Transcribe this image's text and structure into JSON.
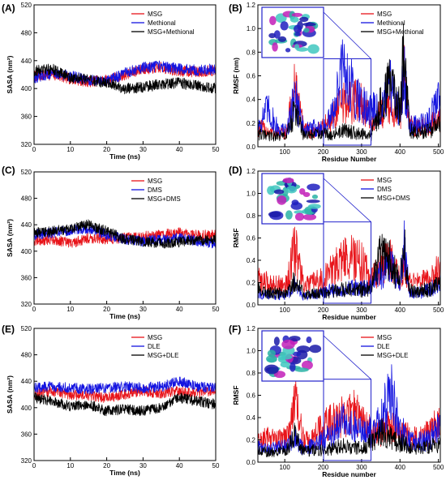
{
  "colors": {
    "msg": "#e8141a",
    "other": "#1414e0",
    "combo": "#000000",
    "inset_box": "#2222cc"
  },
  "panels": [
    {
      "label": "(A)",
      "kind": "sasa",
      "legend": [
        "MSG",
        "Methional",
        "MSG+Methional"
      ]
    },
    {
      "label": "(B)",
      "kind": "rmsf",
      "legend": [
        "MSG",
        "Methional",
        "MSG+Methional"
      ]
    },
    {
      "label": "(C)",
      "kind": "sasa",
      "legend": [
        "MSG",
        "DMS",
        "MSG+DMS"
      ]
    },
    {
      "label": "(D)",
      "kind": "rmsf",
      "legend": [
        "MSG",
        "DMS",
        "MSG+DMS"
      ]
    },
    {
      "label": "(E)",
      "kind": "sasa",
      "legend": [
        "MSG",
        "DLE",
        "MSG+DLE"
      ]
    },
    {
      "label": "(F)",
      "kind": "rmsf",
      "legend": [
        "MSG",
        "DLE",
        "MSG+DLE"
      ]
    }
  ],
  "chart_data": [
    {
      "panel": "(A)",
      "type": "line",
      "xlabel": "Time (ns)",
      "ylabel": "SASA (nm²)",
      "xlim": [
        0,
        50
      ],
      "ylim": [
        320,
        520
      ],
      "xticks": [
        "0",
        "10",
        "20",
        "30",
        "40",
        "50"
      ],
      "yticks": [
        "320",
        "360",
        "400",
        "440",
        "480",
        "520"
      ],
      "series": [
        {
          "name": "MSG",
          "x": [
            0,
            5,
            10,
            15,
            20,
            25,
            30,
            35,
            40,
            45,
            50
          ],
          "values": [
            418,
            420,
            414,
            410,
            412,
            420,
            428,
            430,
            425,
            424,
            426
          ]
        },
        {
          "name": "Methional",
          "x": [
            0,
            5,
            10,
            15,
            20,
            25,
            30,
            35,
            40,
            45,
            50
          ],
          "values": [
            415,
            422,
            418,
            412,
            410,
            422,
            430,
            432,
            428,
            426,
            428
          ]
        },
        {
          "name": "MSG+Methional",
          "x": [
            0,
            5,
            10,
            15,
            20,
            25,
            30,
            35,
            40,
            45,
            50
          ],
          "values": [
            425,
            428,
            416,
            412,
            408,
            400,
            402,
            406,
            408,
            404,
            400
          ]
        }
      ]
    },
    {
      "panel": "(B)",
      "type": "line",
      "xlabel": "Residue Number",
      "ylabel": "RMSF (nm)",
      "xlim": [
        30,
        505
      ],
      "ylim": [
        0,
        1.2
      ],
      "xticks": [
        "100",
        "200",
        "300",
        "400",
        "500"
      ],
      "yticks": [
        "0.0",
        "0.2",
        "0.4",
        "0.6",
        "0.8",
        "1.0",
        "1.2"
      ],
      "series": [
        {
          "name": "MSG",
          "x": [
            30,
            55,
            80,
            105,
            127,
            150,
            175,
            200,
            225,
            250,
            275,
            300,
            325,
            350,
            375,
            400,
            410,
            425,
            450,
            475,
            500
          ],
          "values": [
            0.18,
            0.15,
            0.12,
            0.14,
            0.58,
            0.15,
            0.14,
            0.18,
            0.28,
            0.4,
            0.42,
            0.45,
            0.22,
            0.3,
            0.4,
            0.25,
            0.72,
            0.2,
            0.18,
            0.2,
            0.25
          ]
        },
        {
          "name": "Methional",
          "x": [
            30,
            55,
            80,
            105,
            127,
            150,
            175,
            200,
            225,
            250,
            275,
            300,
            325,
            350,
            375,
            400,
            410,
            425,
            450,
            475,
            500
          ],
          "values": [
            0.2,
            0.35,
            0.18,
            0.14,
            0.5,
            0.14,
            0.18,
            0.16,
            0.3,
            0.72,
            0.55,
            0.42,
            0.35,
            0.32,
            0.55,
            0.3,
            0.7,
            0.22,
            0.2,
            0.24,
            0.45
          ]
        },
        {
          "name": "MSG+Methional",
          "x": [
            30,
            55,
            80,
            105,
            127,
            150,
            175,
            200,
            225,
            250,
            275,
            300,
            325,
            350,
            375,
            400,
            410,
            425,
            450,
            475,
            500
          ],
          "values": [
            0.12,
            0.1,
            0.1,
            0.1,
            0.35,
            0.1,
            0.12,
            0.12,
            0.12,
            0.15,
            0.14,
            0.12,
            0.1,
            0.4,
            0.62,
            0.35,
            0.88,
            0.15,
            0.14,
            0.15,
            0.2
          ]
        }
      ]
    },
    {
      "panel": "(C)",
      "type": "line",
      "xlabel": "Time (ns)",
      "ylabel": "SASA (nm²)",
      "xlim": [
        0,
        50
      ],
      "ylim": [
        320,
        520
      ],
      "xticks": [
        "0",
        "10",
        "20",
        "30",
        "40",
        "50"
      ],
      "yticks": [
        "320",
        "360",
        "400",
        "440",
        "480",
        "520"
      ],
      "series": [
        {
          "name": "MSG",
          "x": [
            0,
            5,
            10,
            15,
            20,
            25,
            30,
            35,
            40,
            45,
            50
          ],
          "values": [
            415,
            418,
            412,
            420,
            418,
            420,
            422,
            425,
            428,
            424,
            425
          ]
        },
        {
          "name": "DMS",
          "x": [
            0,
            5,
            10,
            15,
            20,
            25,
            30,
            35,
            40,
            45,
            50
          ],
          "values": [
            425,
            428,
            432,
            435,
            425,
            418,
            415,
            418,
            420,
            415,
            412
          ]
        },
        {
          "name": "MSG+DMS",
          "x": [
            0,
            5,
            10,
            15,
            20,
            25,
            30,
            35,
            40,
            45,
            50
          ],
          "values": [
            428,
            430,
            434,
            440,
            430,
            418,
            415,
            412,
            414,
            416,
            418
          ]
        }
      ]
    },
    {
      "panel": "(D)",
      "type": "line",
      "xlabel": "Residue number",
      "ylabel": "RMSF",
      "xlim": [
        30,
        505
      ],
      "ylim": [
        0,
        1.2
      ],
      "xticks": [
        "100",
        "200",
        "300",
        "400",
        "500"
      ],
      "yticks": [
        "0.0",
        "0.2",
        "0.4",
        "0.6",
        "0.8",
        "1.0",
        "1.2"
      ],
      "series": [
        {
          "name": "MSG",
          "x": [
            30,
            55,
            80,
            105,
            127,
            150,
            175,
            200,
            225,
            250,
            275,
            300,
            325,
            350,
            375,
            400,
            410,
            425,
            450,
            475,
            500
          ],
          "values": [
            0.25,
            0.22,
            0.2,
            0.2,
            0.58,
            0.18,
            0.22,
            0.25,
            0.35,
            0.45,
            0.48,
            0.42,
            0.25,
            0.4,
            0.45,
            0.28,
            0.4,
            0.22,
            0.22,
            0.25,
            0.38
          ]
        },
        {
          "name": "DMS",
          "x": [
            30,
            55,
            80,
            105,
            127,
            150,
            175,
            200,
            225,
            250,
            275,
            300,
            325,
            350,
            375,
            400,
            410,
            425,
            450,
            475,
            500
          ],
          "values": [
            0.12,
            0.1,
            0.1,
            0.1,
            0.2,
            0.08,
            0.1,
            0.12,
            0.15,
            0.15,
            0.18,
            0.16,
            0.18,
            0.3,
            0.4,
            0.2,
            0.6,
            0.12,
            0.12,
            0.15,
            0.2
          ]
        },
        {
          "name": "MSG+DMS",
          "x": [
            30,
            55,
            80,
            105,
            127,
            150,
            175,
            200,
            225,
            250,
            275,
            300,
            325,
            350,
            375,
            400,
            410,
            425,
            450,
            475,
            500
          ],
          "values": [
            0.15,
            0.12,
            0.12,
            0.1,
            0.25,
            0.1,
            0.12,
            0.12,
            0.14,
            0.15,
            0.16,
            0.15,
            0.18,
            0.5,
            0.42,
            0.22,
            0.62,
            0.14,
            0.14,
            0.15,
            0.2
          ]
        }
      ]
    },
    {
      "panel": "(E)",
      "type": "line",
      "xlabel": "Time (ns)",
      "ylabel": "SASA (nm²)",
      "xlim": [
        0,
        50
      ],
      "ylim": [
        320,
        520
      ],
      "xticks": [
        "0",
        "10",
        "20",
        "30",
        "40",
        "50"
      ],
      "yticks": [
        "320",
        "360",
        "400",
        "440",
        "480",
        "520"
      ],
      "series": [
        {
          "name": "MSG",
          "x": [
            0,
            5,
            10,
            15,
            20,
            25,
            30,
            35,
            40,
            45,
            50
          ],
          "values": [
            420,
            425,
            420,
            418,
            415,
            420,
            425,
            422,
            425,
            422,
            425
          ]
        },
        {
          "name": "DLE",
          "x": [
            0,
            5,
            10,
            15,
            20,
            25,
            30,
            35,
            40,
            45,
            50
          ],
          "values": [
            430,
            432,
            430,
            428,
            430,
            432,
            430,
            432,
            440,
            432,
            430
          ]
        },
        {
          "name": "MSG+DLE",
          "x": [
            0,
            5,
            10,
            15,
            20,
            25,
            30,
            35,
            40,
            45,
            50
          ],
          "values": [
            415,
            410,
            402,
            405,
            395,
            398,
            395,
            400,
            415,
            410,
            405
          ]
        }
      ]
    },
    {
      "panel": "(F)",
      "type": "line",
      "xlabel": "Residue number",
      "ylabel": "RMSF",
      "xlim": [
        30,
        505
      ],
      "ylim": [
        0,
        1.2
      ],
      "xticks": [
        "100",
        "200",
        "300",
        "400",
        "500"
      ],
      "yticks": [
        "0.0",
        "0.2",
        "0.4",
        "0.6",
        "0.8",
        "1.0",
        "1.2"
      ],
      "series": [
        {
          "name": "MSG",
          "x": [
            30,
            55,
            80,
            105,
            127,
            150,
            175,
            200,
            225,
            250,
            275,
            300,
            325,
            350,
            375,
            400,
            410,
            425,
            450,
            475,
            500
          ],
          "values": [
            0.2,
            0.25,
            0.22,
            0.25,
            0.6,
            0.2,
            0.25,
            0.35,
            0.4,
            0.45,
            0.48,
            0.5,
            0.3,
            0.3,
            0.35,
            0.3,
            0.32,
            0.25,
            0.25,
            0.28,
            0.4
          ]
        },
        {
          "name": "DLE",
          "x": [
            30,
            55,
            80,
            105,
            127,
            150,
            175,
            200,
            225,
            250,
            275,
            300,
            325,
            350,
            375,
            400,
            410,
            425,
            450,
            475,
            500
          ],
          "values": [
            0.15,
            0.12,
            0.15,
            0.15,
            0.25,
            0.12,
            0.18,
            0.22,
            0.3,
            0.4,
            0.35,
            0.32,
            0.3,
            0.4,
            0.72,
            0.3,
            0.3,
            0.2,
            0.2,
            0.22,
            0.35
          ]
        },
        {
          "name": "MSG+DLE",
          "x": [
            30,
            55,
            80,
            105,
            127,
            150,
            175,
            200,
            225,
            250,
            275,
            300,
            325,
            350,
            375,
            400,
            410,
            425,
            450,
            475,
            500
          ],
          "values": [
            0.12,
            0.1,
            0.1,
            0.12,
            0.28,
            0.1,
            0.12,
            0.12,
            0.14,
            0.16,
            0.15,
            0.14,
            0.2,
            0.3,
            0.25,
            0.18,
            0.2,
            0.14,
            0.14,
            0.15,
            0.18
          ]
        }
      ]
    }
  ]
}
